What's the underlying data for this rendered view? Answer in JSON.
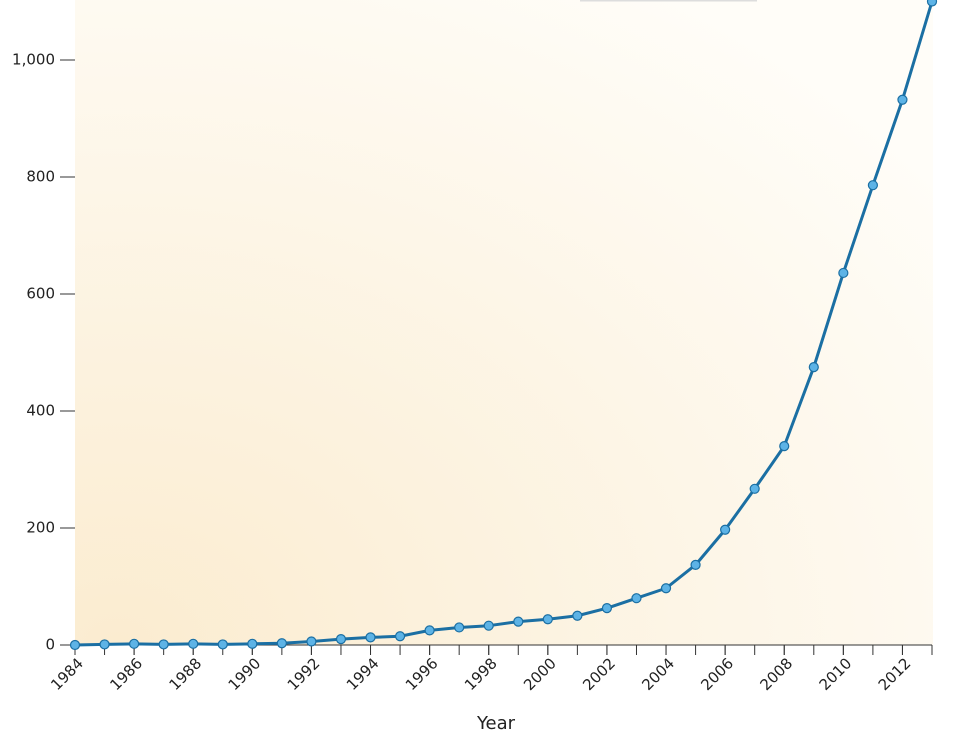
{
  "chart_data": {
    "type": "line",
    "x_label": "Year",
    "x": [
      1984,
      1985,
      1986,
      1987,
      1988,
      1989,
      1990,
      1991,
      1992,
      1993,
      1994,
      1995,
      1996,
      1997,
      1998,
      1999,
      2000,
      2001,
      2002,
      2003,
      2004,
      2005,
      2006,
      2007,
      2008,
      2009,
      2010,
      2011,
      2012,
      2013
    ],
    "series": [
      {
        "color": "#1b6fa3",
        "values": [
          0,
          1,
          2,
          1,
          2,
          1,
          2,
          3,
          6,
          10,
          13,
          15,
          25,
          30,
          33,
          40,
          44,
          50,
          63,
          80,
          97,
          137,
          197,
          267,
          340,
          475,
          636,
          786,
          932,
          1100
        ]
      }
    ],
    "xlim": [
      1984,
      2013
    ],
    "xticks": [
      1984,
      1986,
      1988,
      1990,
      1992,
      1994,
      1996,
      1998,
      2000,
      2002,
      2004,
      2006,
      2008,
      2010,
      2012
    ],
    "ylim": [
      0,
      1100
    ],
    "yticks": [
      0,
      200,
      400,
      600,
      800,
      {
        "value": 1000,
        "label": "1,000"
      }
    ]
  }
}
